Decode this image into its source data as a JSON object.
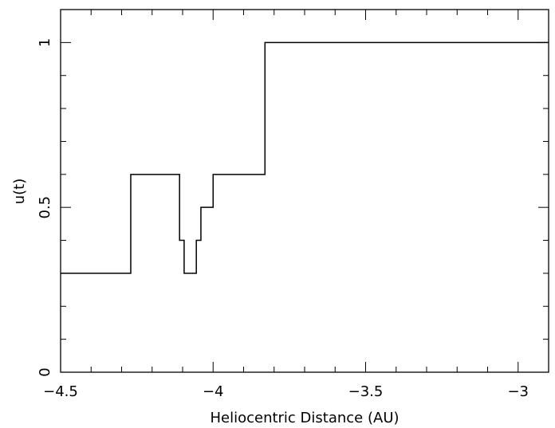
{
  "chart_data": {
    "type": "line",
    "style": "step",
    "title": "",
    "xlabel": "Heliocentric Distance (AU)",
    "ylabel": "u(t)",
    "xlim": [
      -4.5,
      -2.9
    ],
    "ylim": [
      0,
      1.1
    ],
    "x_ticks_major": [
      -4.5,
      -4,
      -3.5,
      -3
    ],
    "x_tick_labels": [
      "−4.5",
      "−4",
      "−3.5",
      "−3"
    ],
    "x_ticks_minor_step": 0.1,
    "y_ticks_major": [
      0,
      0.5,
      1
    ],
    "y_tick_labels": [
      "0",
      "0.5",
      "1"
    ],
    "y_ticks_minor_step": 0.1,
    "grid": false,
    "series": [
      {
        "x": [
          -4.5,
          -4.27,
          -4.27,
          -4.11,
          -4.11,
          -4.095,
          -4.095,
          -4.055,
          -4.055,
          -4.04,
          -4.04,
          -4.0,
          -4.0,
          -3.83,
          -3.83,
          -2.9
        ],
        "y": [
          0.3,
          0.3,
          0.6,
          0.6,
          0.4,
          0.4,
          0.3,
          0.3,
          0.4,
          0.4,
          0.5,
          0.5,
          0.6,
          0.6,
          1.0,
          1.0
        ]
      }
    ]
  }
}
